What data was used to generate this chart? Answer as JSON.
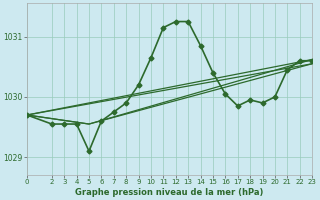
{
  "background_color": "#cde9f0",
  "grid_color": "#99ccbb",
  "line_color": "#2d6a2d",
  "title": "Graphe pression niveau de la mer (hPa)",
  "xlim": [
    0,
    23
  ],
  "ylim": [
    1028.7,
    1031.55
  ],
  "yticks": [
    1029,
    1030,
    1031
  ],
  "xticks": [
    0,
    2,
    3,
    4,
    5,
    6,
    7,
    8,
    9,
    10,
    11,
    12,
    13,
    14,
    15,
    16,
    17,
    18,
    19,
    20,
    21,
    22,
    23
  ],
  "series": [
    {
      "x": [
        0,
        2,
        3,
        4,
        5,
        6,
        7,
        8,
        9,
        10,
        11,
        12,
        13,
        14,
        15,
        16,
        17,
        18,
        19,
        20,
        21,
        22,
        23
      ],
      "y": [
        1029.7,
        1029.55,
        1029.55,
        1029.55,
        1029.1,
        1029.6,
        1029.75,
        1029.9,
        1030.2,
        1030.65,
        1031.15,
        1031.25,
        1031.25,
        1030.85,
        1030.4,
        1030.05,
        1029.85,
        1029.95,
        1029.9,
        1030.0,
        1030.45,
        1030.6,
        1030.6
      ],
      "marker": "D",
      "markersize": 2.5,
      "linewidth": 1.2,
      "zorder": 5
    },
    {
      "x": [
        0,
        23
      ],
      "y": [
        1029.7,
        1030.62
      ],
      "marker": null,
      "markersize": 0,
      "linewidth": 0.9,
      "zorder": 2
    },
    {
      "x": [
        0,
        23
      ],
      "y": [
        1029.7,
        1030.55
      ],
      "marker": null,
      "markersize": 0,
      "linewidth": 0.9,
      "zorder": 2
    },
    {
      "x": [
        0,
        5,
        23
      ],
      "y": [
        1029.7,
        1029.55,
        1030.62
      ],
      "marker": null,
      "markersize": 0,
      "linewidth": 0.9,
      "zorder": 2
    },
    {
      "x": [
        0,
        5,
        23
      ],
      "y": [
        1029.7,
        1029.55,
        1030.55
      ],
      "marker": null,
      "markersize": 0,
      "linewidth": 0.9,
      "zorder": 2
    }
  ]
}
